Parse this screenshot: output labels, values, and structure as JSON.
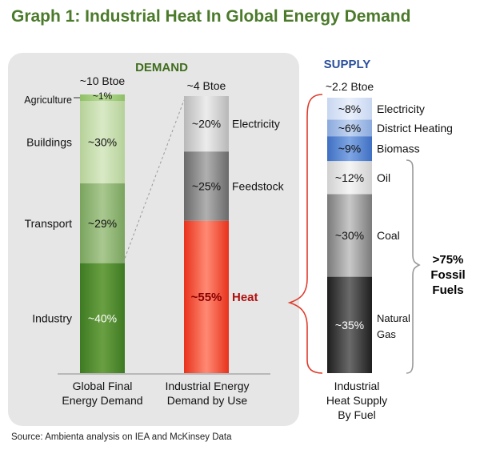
{
  "title": "Graph 1: Industrial Heat In Global Energy Demand",
  "source": "Source: Ambienta analysis on IEA and McKinsey Data",
  "colors": {
    "title_green": "#4a7a2a",
    "section_demand": "#3f6d1c",
    "section_supply": "#2b4f9e",
    "panel_bg": "#e6e6e6",
    "bracket_red": "#e03a2a",
    "bracket_gray": "#9a9a9a",
    "heat_label": "#b01010"
  },
  "chart_data": [
    {
      "type": "bar",
      "subtype": "stacked-100",
      "section": "DEMAND",
      "category": "Global Final Energy Demand",
      "total_label": "~10 Btoe",
      "segments": [
        {
          "name": "Industry",
          "value": 40,
          "label": "~40%"
        },
        {
          "name": "Transport",
          "value": 29,
          "label": "~29%"
        },
        {
          "name": "Buildings",
          "value": 30,
          "label": "~30%"
        },
        {
          "name": "Agriculture",
          "value": 1,
          "label": "~1%"
        }
      ]
    },
    {
      "type": "bar",
      "subtype": "stacked-100",
      "section": "DEMAND",
      "category": "Industrial Energy Demand by Use",
      "total_label": "~4 Btoe",
      "segments": [
        {
          "name": "Heat",
          "value": 55,
          "label": "~55%"
        },
        {
          "name": "Feedstock",
          "value": 25,
          "label": "~25%"
        },
        {
          "name": "Electricity",
          "value": 20,
          "label": "~20%"
        }
      ]
    },
    {
      "type": "bar",
      "subtype": "stacked-100",
      "section": "SUPPLY",
      "category": "Industrial Heat Supply By Fuel",
      "total_label": "~2.2 Btoe",
      "segments": [
        {
          "name": "Natural Gas",
          "value": 35,
          "label": "~35%"
        },
        {
          "name": "Coal",
          "value": 30,
          "label": "~30%"
        },
        {
          "name": "Oil",
          "value": 12,
          "label": "~12%"
        },
        {
          "name": "Biomass",
          "value": 9,
          "label": "~9%"
        },
        {
          "name": "District Heating",
          "value": 6,
          "label": "~6%"
        },
        {
          "name": "Electricity",
          "value": 8,
          "label": "~8%"
        }
      ],
      "annotation": ">75% Fossil Fuels"
    }
  ],
  "labels": {
    "demand_header": "DEMAND",
    "supply_header": "SUPPLY",
    "bar1_category_lines": [
      "Global Final",
      "Energy Demand"
    ],
    "bar2_category_lines": [
      "Industrial Energy",
      "Demand by Use"
    ],
    "bar3_category_lines": [
      "Industrial",
      "Heat Supply",
      "By Fuel"
    ],
    "fossil_lines": [
      ">75%",
      "Fossil",
      "Fuels"
    ],
    "natural_gas_lines": [
      "Natural",
      "Gas"
    ]
  }
}
